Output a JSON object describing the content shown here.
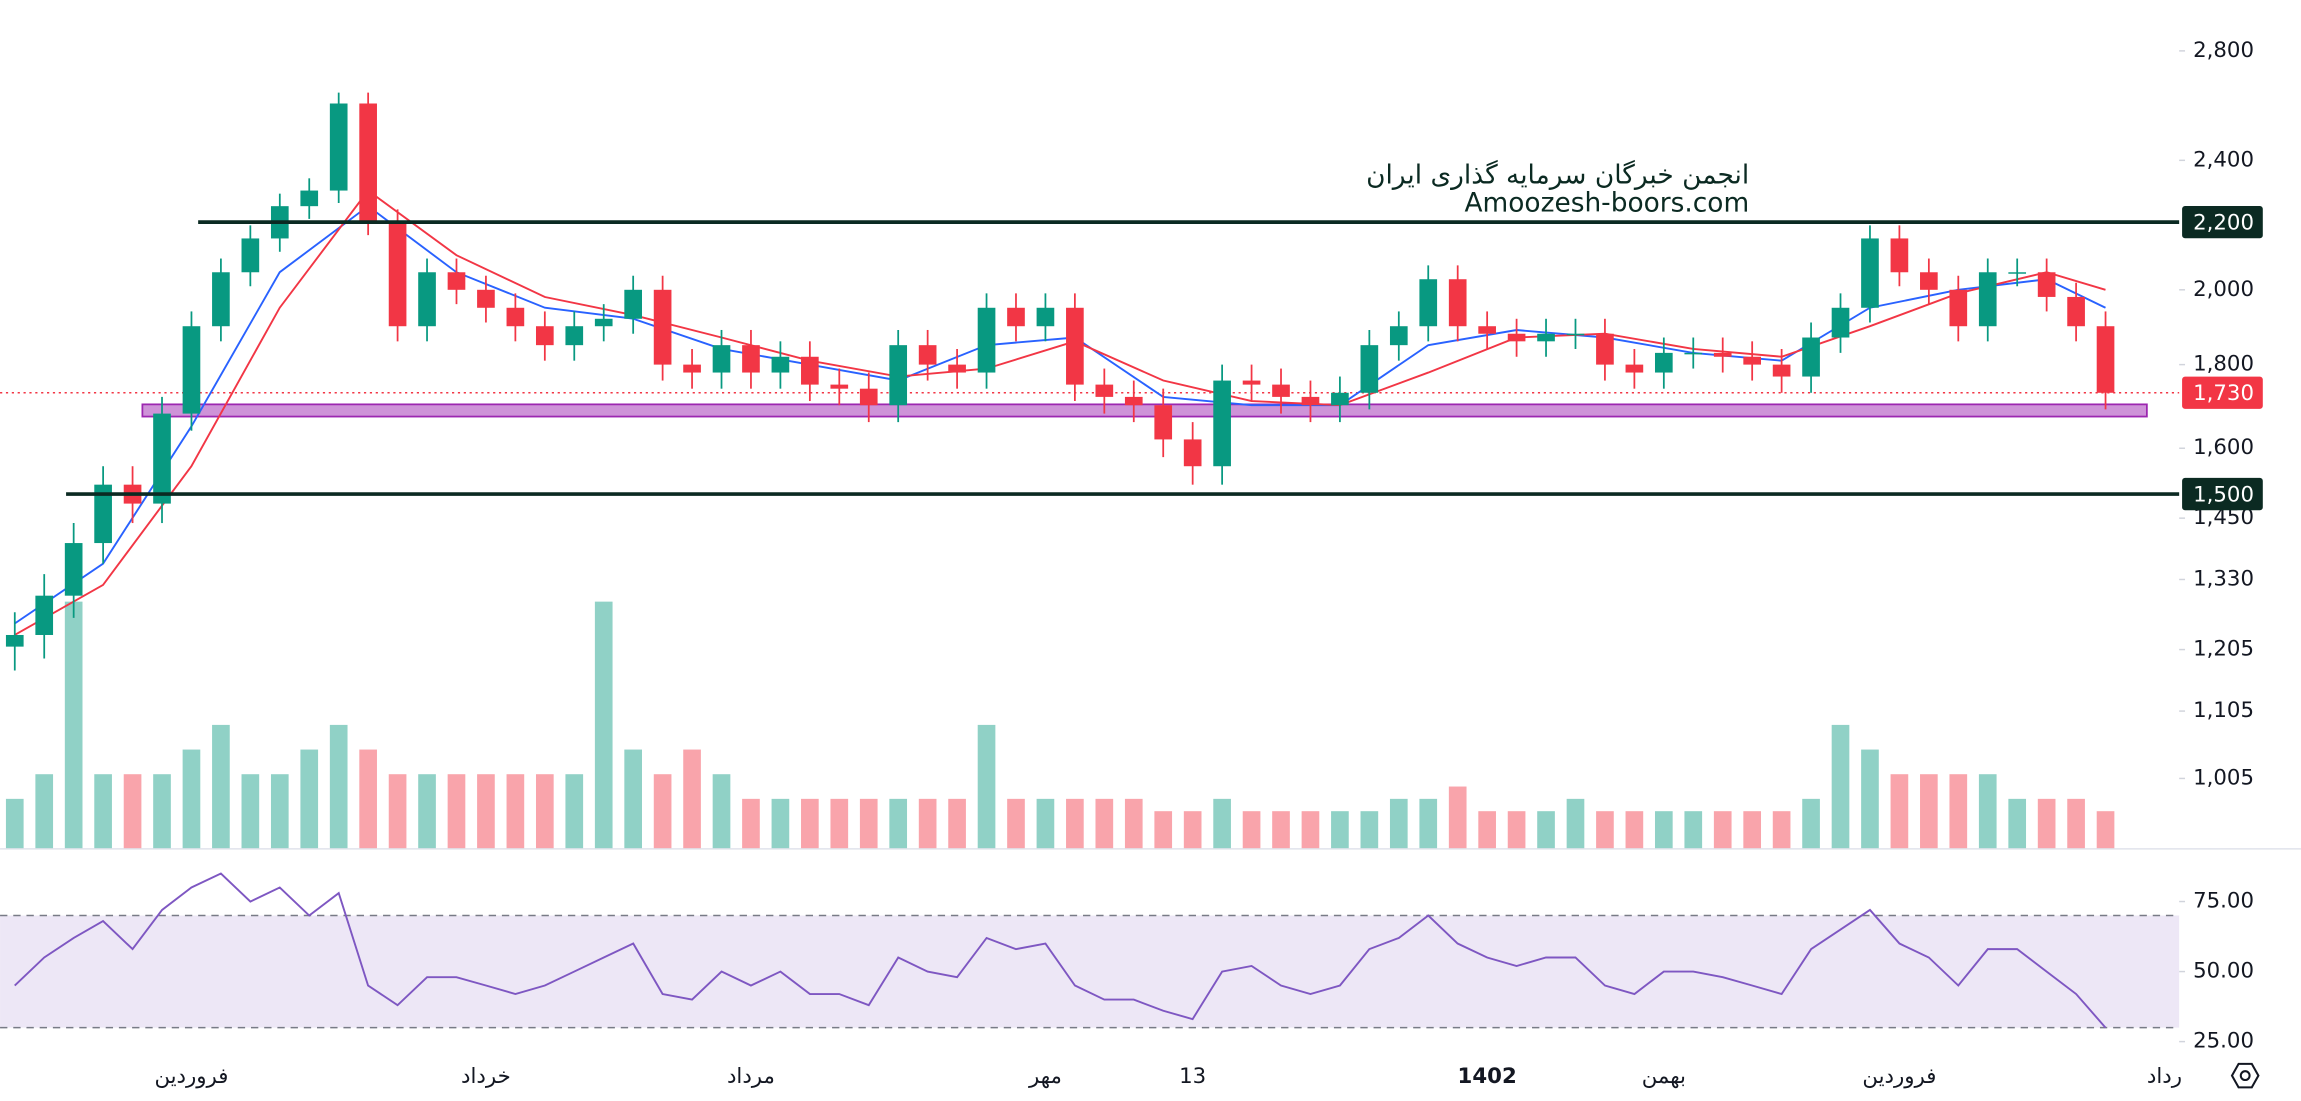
{
  "chart_data": [
    {
      "type": "candlestick",
      "annotation": [
        "انجمن خبرگان سرمایه گذاری ایران",
        "Amoozesh-boors.com"
      ],
      "x": [
        0,
        1,
        2,
        3,
        4,
        5,
        6,
        7,
        8,
        9,
        10,
        11,
        12,
        13,
        14,
        15,
        16,
        17,
        18,
        19,
        20,
        21,
        22,
        23,
        24,
        25,
        26,
        27,
        28,
        29,
        30,
        31,
        32,
        33,
        34,
        35,
        36,
        37,
        38,
        39,
        40,
        41,
        42,
        43,
        44,
        45,
        46,
        47,
        48,
        49,
        50,
        51,
        52,
        53,
        54,
        55,
        56,
        57,
        58,
        59,
        60,
        61,
        62,
        63,
        64,
        65,
        66,
        67,
        68,
        69,
        70,
        71
      ],
      "open": [
        1210,
        1230,
        1300,
        1400,
        1520,
        1480,
        1680,
        1900,
        2050,
        2150,
        2250,
        2300,
        2600,
        2200,
        1900,
        2050,
        2000,
        1950,
        1900,
        1850,
        1900,
        1920,
        2000,
        1800,
        1780,
        1850,
        1780,
        1820,
        1750,
        1740,
        1700,
        1850,
        1800,
        1780,
        1950,
        1900,
        1950,
        1750,
        1720,
        1700,
        1620,
        1560,
        1760,
        1750,
        1720,
        1700,
        1730,
        1850,
        1900,
        2030,
        1900,
        1880,
        1860,
        1880,
        1880,
        1800,
        1780,
        1830,
        1830,
        1820,
        1800,
        1770,
        1870,
        1950,
        2150,
        2050,
        2000,
        1900,
        2050,
        2050,
        1980,
        1900
      ],
      "high": [
        1270,
        1340,
        1440,
        1560,
        1560,
        1720,
        1940,
        2090,
        2190,
        2290,
        2340,
        2640,
        2640,
        2240,
        2090,
        2090,
        2040,
        1990,
        1940,
        1940,
        1960,
        2040,
        2040,
        1840,
        1890,
        1890,
        1860,
        1860,
        1790,
        1780,
        1890,
        1890,
        1840,
        1990,
        1990,
        1990,
        1990,
        1790,
        1760,
        1740,
        1660,
        1800,
        1800,
        1790,
        1760,
        1770,
        1890,
        1940,
        2070,
        2070,
        1940,
        1920,
        1920,
        1920,
        1920,
        1840,
        1870,
        1870,
        1870,
        1860,
        1840,
        1910,
        1990,
        2190,
        2190,
        2090,
        2040,
        2090,
        2090,
        2090,
        2020,
        1940
      ],
      "low": [
        1170,
        1190,
        1260,
        1360,
        1440,
        1440,
        1640,
        1860,
        2010,
        2110,
        2210,
        2260,
        2160,
        1860,
        1860,
        1960,
        1910,
        1860,
        1810,
        1810,
        1860,
        1880,
        1760,
        1740,
        1740,
        1740,
        1740,
        1710,
        1700,
        1660,
        1660,
        1760,
        1740,
        1740,
        1860,
        1860,
        1710,
        1680,
        1660,
        1580,
        1520,
        1520,
        1710,
        1680,
        1660,
        1660,
        1690,
        1810,
        1860,
        1860,
        1840,
        1820,
        1820,
        1840,
        1760,
        1740,
        1740,
        1790,
        1780,
        1760,
        1730,
        1730,
        1830,
        1910,
        2010,
        1960,
        1860,
        1860,
        2010,
        1940,
        1860,
        1690
      ],
      "close": [
        1230,
        1300,
        1400,
        1520,
        1480,
        1680,
        1900,
        2050,
        2150,
        2250,
        2300,
        2600,
        2200,
        1900,
        2050,
        2000,
        1950,
        1900,
        1850,
        1900,
        1920,
        2000,
        1800,
        1780,
        1850,
        1780,
        1820,
        1750,
        1740,
        1700,
        1850,
        1800,
        1780,
        1950,
        1900,
        1950,
        1750,
        1720,
        1700,
        1620,
        1560,
        1760,
        1750,
        1720,
        1700,
        1730,
        1850,
        1900,
        2030,
        1900,
        1880,
        1860,
        1880,
        1880,
        1800,
        1780,
        1830,
        1830,
        1820,
        1800,
        1770,
        1870,
        1950,
        2150,
        2050,
        2000,
        1900,
        2050,
        2050,
        1980,
        1900,
        1730
      ],
      "volume": [
        2,
        3,
        10,
        3,
        3,
        3,
        4,
        5,
        3,
        3,
        4,
        5,
        4,
        3,
        3,
        3,
        3,
        3,
        3,
        3,
        10,
        4,
        3,
        4,
        3,
        2,
        2,
        2,
        2,
        2,
        2,
        2,
        2,
        5,
        2,
        2,
        2,
        2,
        2,
        1.5,
        1.5,
        2,
        1.5,
        1.5,
        1.5,
        1.5,
        1.5,
        2,
        2,
        2.5,
        1.5,
        1.5,
        1.5,
        2,
        1.5,
        1.5,
        1.5,
        1.5,
        1.5,
        1.5,
        1.5,
        2,
        5,
        4,
        3,
        3,
        3,
        3,
        2,
        2,
        2,
        1.5
      ],
      "up_color": "#089981",
      "down_color": "#f23645",
      "series": [
        {
          "color": "#2962ff",
          "x": [
            0,
            3,
            6,
            9,
            12,
            15,
            18,
            21,
            24,
            27,
            30,
            33,
            36,
            39,
            42,
            45,
            48,
            51,
            54,
            57,
            60,
            63,
            66,
            69,
            71
          ],
          "values": [
            1250,
            1360,
            1650,
            2050,
            2250,
            2050,
            1950,
            1920,
            1840,
            1800,
            1760,
            1850,
            1870,
            1720,
            1700,
            1700,
            1850,
            1890,
            1870,
            1830,
            1810,
            1950,
            2000,
            2030,
            1950
          ]
        },
        {
          "color": "#f23645",
          "x": [
            0,
            3,
            6,
            9,
            12,
            15,
            18,
            21,
            24,
            27,
            30,
            33,
            36,
            39,
            42,
            45,
            48,
            51,
            54,
            57,
            60,
            63,
            66,
            69,
            71
          ],
          "values": [
            1230,
            1320,
            1560,
            1950,
            2300,
            2100,
            1980,
            1930,
            1870,
            1810,
            1770,
            1790,
            1860,
            1760,
            1710,
            1700,
            1780,
            1870,
            1880,
            1840,
            1820,
            1900,
            1990,
            2050,
            2000
          ]
        }
      ],
      "hlines": [
        {
          "value": 2200,
          "label": "2,200"
        },
        {
          "value": 1500,
          "label": "1,500"
        }
      ],
      "last_price": {
        "value": 1730,
        "label": "1,730"
      },
      "zone": [
        1673,
        1702
      ],
      "log_scale": true,
      "xlim": [
        -0.5,
        73.5
      ],
      "ylim": [
        911,
        3008
      ],
      "yticks": [
        {
          "value": 1005,
          "label": "1,005"
        },
        {
          "value": 1105,
          "label": "1,105"
        },
        {
          "value": 1205,
          "label": "1,205"
        },
        {
          "value": 1330,
          "label": "1,330"
        },
        {
          "value": 1450,
          "label": "1,450"
        },
        {
          "value": 1600,
          "label": "1,600"
        },
        {
          "value": 1800,
          "label": "1,800"
        },
        {
          "value": 2000,
          "label": "2,000"
        },
        {
          "value": 2400,
          "label": "2,400"
        },
        {
          "value": 2800,
          "label": "2,800"
        }
      ],
      "xticks": [
        {
          "value": 6,
          "label": "فروردین"
        },
        {
          "value": 16,
          "label": "خرداد"
        },
        {
          "value": 25,
          "label": "مرداد"
        },
        {
          "value": 35,
          "label": "مهر"
        },
        {
          "value": 40,
          "label": "13"
        },
        {
          "value": 50,
          "label": "1402"
        },
        {
          "value": 56,
          "label": "بهمن"
        },
        {
          "value": 64,
          "label": "فروردین"
        },
        {
          "value": 73,
          "label": "رداد"
        }
      ]
    },
    {
      "type": "line",
      "x": [
        0,
        1,
        2,
        3,
        4,
        5,
        6,
        7,
        8,
        9,
        10,
        11,
        12,
        13,
        14,
        15,
        16,
        17,
        18,
        19,
        20,
        21,
        22,
        23,
        24,
        25,
        26,
        27,
        28,
        29,
        30,
        31,
        32,
        33,
        34,
        35,
        36,
        37,
        38,
        39,
        40,
        41,
        42,
        43,
        44,
        45,
        46,
        47,
        48,
        49,
        50,
        51,
        52,
        53,
        54,
        55,
        56,
        57,
        58,
        59,
        60,
        61,
        62,
        63,
        64,
        65,
        66,
        67,
        68,
        69,
        70,
        71
      ],
      "values": [
        45,
        55,
        62,
        68,
        58,
        72,
        80,
        85,
        75,
        80,
        70,
        78,
        45,
        38,
        48,
        48,
        45,
        42,
        45,
        50,
        55,
        60,
        42,
        40,
        50,
        45,
        50,
        42,
        42,
        38,
        55,
        50,
        48,
        62,
        58,
        60,
        45,
        40,
        40,
        36,
        33,
        50,
        52,
        45,
        42,
        45,
        58,
        62,
        70,
        60,
        55,
        52,
        55,
        55,
        45,
        42,
        50,
        50,
        48,
        45,
        42,
        58,
        65,
        72,
        60,
        55,
        45,
        58,
        58,
        50,
        42,
        30
      ],
      "color": "#7e57c2",
      "levels": [
        30,
        70
      ],
      "band_color": "#ede7f6",
      "xlim": [
        -0.5,
        73.5
      ],
      "ylim": [
        5,
        93
      ],
      "yticks": [
        {
          "value": 25,
          "label": "25.00"
        },
        {
          "value": 50,
          "label": "50.00"
        },
        {
          "value": 75,
          "label": "75.00"
        }
      ]
    }
  ]
}
